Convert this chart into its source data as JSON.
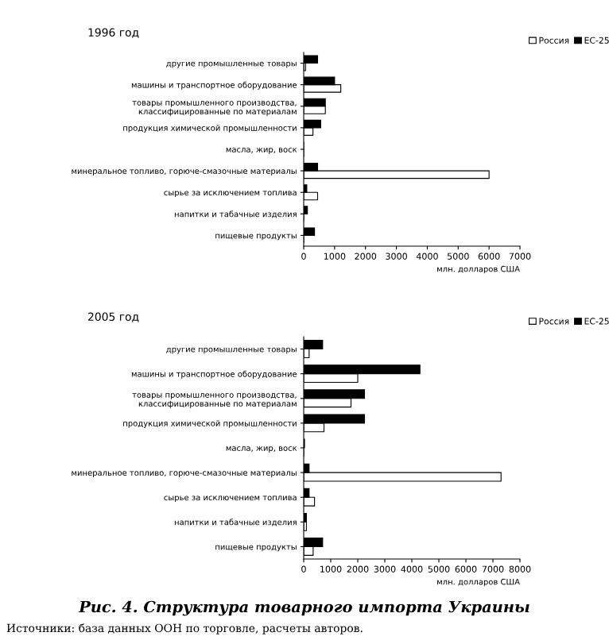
{
  "chart_data": [
    {
      "type": "bar",
      "orientation": "horizontal",
      "title": "1996 год",
      "xlabel": "млн. долларов США",
      "categories": [
        "другие промышленные товары",
        "машины и транспортное оборудование",
        "товары промышленного производства,\nклассифицированные по материалам",
        "продукция химической промышленности",
        "масла, жир, воск",
        "минеральное топливо, горюче-смазочные материалы",
        "сырье за исключением топлива",
        "напитки и табачные изделия",
        "пищевые продукты"
      ],
      "series": [
        {
          "name": "Россия",
          "color": "#ffffff",
          "values": [
            60,
            1200,
            700,
            300,
            null,
            6000,
            450,
            null,
            null
          ]
        },
        {
          "name": "ЕС-25",
          "color": "#000000",
          "values": [
            450,
            1000,
            700,
            550,
            null,
            450,
            100,
            120,
            350
          ]
        }
      ],
      "xlim": [
        0,
        7000
      ],
      "xticks": [
        0,
        1000,
        2000,
        3000,
        4000,
        5000,
        6000,
        7000
      ],
      "legend": "top right"
    },
    {
      "type": "bar",
      "orientation": "horizontal",
      "title": "2005 год",
      "xlabel": "млн. долларов США",
      "categories": [
        "другие промышленные товары",
        "машины и транспортное оборудование",
        "товары промышленного производства,\nклассифицированные по материалам",
        "продукция химической промышленности",
        "масла, жир, воск",
        "минеральное топливо, горюче-смазочные материалы",
        "сырье за исключением топлива",
        "напитки и табачные изделия",
        "пищевые продукты"
      ],
      "series": [
        {
          "name": "Россия",
          "color": "#ffffff",
          "values": [
            200,
            2000,
            1750,
            750,
            null,
            7300,
            400,
            100,
            350
          ]
        },
        {
          "name": "ЕС-25",
          "color": "#000000",
          "values": [
            700,
            4300,
            2250,
            2250,
            30,
            200,
            200,
            100,
            700
          ]
        }
      ],
      "xlim": [
        0,
        8000
      ],
      "xticks": [
        0,
        1000,
        2000,
        3000,
        4000,
        5000,
        6000,
        7000,
        8000
      ],
      "legend": "top right",
      "annotations": [
        "Рис. 4. Структура товарного импорта Украины",
        "Источники: база данных ООН по торговле, расчеты авторов."
      ]
    }
  ]
}
